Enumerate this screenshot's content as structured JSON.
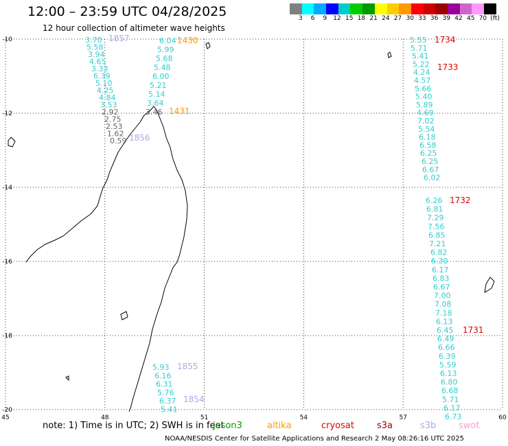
{
  "header": {
    "title": "12:00 – 23:59 UTC 04/28/2025",
    "subtitle": "12 hour collection of altimeter wave heights"
  },
  "colorbar": {
    "colors": [
      "#808080",
      "#00ffff",
      "#00aaff",
      "#0000ff",
      "#00cccc",
      "#00cc00",
      "#009900",
      "#ffff00",
      "#ffcc00",
      "#ff9900",
      "#ff0000",
      "#cc0000",
      "#990000",
      "#990099",
      "#cc66cc",
      "#ff99ff",
      "#000000"
    ],
    "ticks": [
      "3",
      "6",
      "9",
      "12",
      "15",
      "18",
      "21",
      "24",
      "27",
      "30",
      "33",
      "36",
      "39",
      "42",
      "45",
      "70",
      "(ft)"
    ]
  },
  "map": {
    "lon_range": [
      45,
      60
    ],
    "lat_range": [
      -20,
      -10
    ],
    "lat_ticks": [
      "-10",
      "-12",
      "-14",
      "-16",
      "-18",
      "-20"
    ],
    "lon_ticks": [
      "45",
      "48",
      "51",
      "54",
      "57",
      "60"
    ]
  },
  "tracks": [
    {
      "color": "#33cccc",
      "values": [
        {
          "t": "3.70",
          "c": "#33cccc"
        },
        {
          "t": "5.58",
          "c": "#33cccc"
        },
        {
          "t": "3.94",
          "c": "#33cccc"
        },
        {
          "t": "4.65",
          "c": "#33cccc"
        },
        {
          "t": "3.33",
          "c": "#33cccc"
        },
        {
          "t": "6.39",
          "c": "#33cccc"
        },
        {
          "t": "5.10",
          "c": "#33cccc"
        },
        {
          "t": "4.25",
          "c": "#33cccc"
        },
        {
          "t": "4.84",
          "c": "#33cccc"
        },
        {
          "t": "3.53",
          "c": "#33cccc"
        },
        {
          "t": "2.92",
          "c": "#666666"
        },
        {
          "t": "2.75",
          "c": "#666666"
        },
        {
          "t": "2.53",
          "c": "#666666"
        },
        {
          "t": "1.62",
          "c": "#666666"
        },
        {
          "t": "0.59",
          "c": "#666666"
        }
      ]
    },
    {
      "color": "#33cccc",
      "values": [
        {
          "t": "6.04",
          "c": "#33cccc"
        },
        {
          "t": "5.99",
          "c": "#33cccc"
        },
        {
          "t": "5.68",
          "c": "#33cccc"
        },
        {
          "t": "5.48",
          "c": "#33cccc"
        },
        {
          "t": "6.00",
          "c": "#33cccc"
        },
        {
          "t": "5.21",
          "c": "#33cccc"
        },
        {
          "t": "5.14",
          "c": "#33cccc"
        },
        {
          "t": "3.64",
          "c": "#33cccc"
        },
        {
          "t": "3.46",
          "c": "#666666"
        }
      ]
    },
    {
      "color": "#33cccc",
      "values": [
        {
          "t": "5.93",
          "c": "#33cccc"
        },
        {
          "t": "6.16",
          "c": "#33cccc"
        },
        {
          "t": "6.31",
          "c": "#33cccc"
        },
        {
          "t": "5.76",
          "c": "#33cccc"
        },
        {
          "t": "6.37",
          "c": "#33cccc"
        },
        {
          "t": "5.41",
          "c": "#33cccc"
        }
      ]
    },
    {
      "color": "#33cccc",
      "values": [
        {
          "t": "5.55",
          "c": "#33cccc"
        },
        {
          "t": "5.71",
          "c": "#33cccc"
        },
        {
          "t": "5.41",
          "c": "#33cccc"
        },
        {
          "t": "5.22",
          "c": "#33cccc"
        },
        {
          "t": "4.24",
          "c": "#33cccc"
        },
        {
          "t": "4.57",
          "c": "#33cccc"
        },
        {
          "t": "5.66",
          "c": "#33cccc"
        },
        {
          "t": "5.40",
          "c": "#33cccc"
        },
        {
          "t": "5.89",
          "c": "#33cccc"
        },
        {
          "t": "4.69",
          "c": "#33cccc"
        },
        {
          "t": "7.02",
          "c": "#33cccc"
        },
        {
          "t": "5.54",
          "c": "#33cccc"
        },
        {
          "t": "6.18",
          "c": "#33cccc"
        },
        {
          "t": "6.58",
          "c": "#33cccc"
        },
        {
          "t": "6.25",
          "c": "#33cccc"
        },
        {
          "t": "6.25",
          "c": "#33cccc"
        },
        {
          "t": "6.67",
          "c": "#33cccc"
        },
        {
          "t": "6.02",
          "c": "#33cccc"
        }
      ]
    },
    {
      "color": "#33cccc",
      "values": [
        {
          "t": "6.26",
          "c": "#33cccc"
        },
        {
          "t": "6.81",
          "c": "#33cccc"
        },
        {
          "t": "7.29",
          "c": "#33cccc"
        },
        {
          "t": "7.56",
          "c": "#33cccc"
        },
        {
          "t": "6.85",
          "c": "#33cccc"
        },
        {
          "t": "7.21",
          "c": "#33cccc"
        },
        {
          "t": "6.82",
          "c": "#33cccc"
        },
        {
          "t": "6.30",
          "c": "#33cccc"
        },
        {
          "t": "6.17",
          "c": "#33cccc"
        },
        {
          "t": "6.83",
          "c": "#33cccc"
        },
        {
          "t": "6.67",
          "c": "#33cccc"
        },
        {
          "t": "7.00",
          "c": "#33cccc"
        },
        {
          "t": "7.08",
          "c": "#33cccc"
        },
        {
          "t": "7.18",
          "c": "#33cccc"
        },
        {
          "t": "6.13",
          "c": "#33cccc"
        },
        {
          "t": "6.45",
          "c": "#33cccc"
        },
        {
          "t": "6.49",
          "c": "#33cccc"
        },
        {
          "t": "6.66",
          "c": "#33cccc"
        },
        {
          "t": "6.39",
          "c": "#33cccc"
        },
        {
          "t": "5.59",
          "c": "#33cccc"
        },
        {
          "t": "6.13",
          "c": "#33cccc"
        },
        {
          "t": "6.80",
          "c": "#33cccc"
        },
        {
          "t": "6.68",
          "c": "#33cccc"
        },
        {
          "t": "5.71",
          "c": "#33cccc"
        },
        {
          "t": "6.17",
          "c": "#33cccc"
        },
        {
          "t": "6.73",
          "c": "#33cccc"
        }
      ]
    }
  ],
  "time_labels": [
    {
      "t": "1857",
      "c": "#b3a6e6"
    },
    {
      "t": "1856",
      "c": "#b3a6e6"
    },
    {
      "t": "1430",
      "c": "#ff9900"
    },
    {
      "t": "1431",
      "c": "#ff9900"
    },
    {
      "t": "1855",
      "c": "#b3a6e6"
    },
    {
      "t": "1854",
      "c": "#b3a6e6"
    },
    {
      "t": "1734",
      "c": "#dd0000"
    },
    {
      "t": "1733",
      "c": "#dd0000"
    },
    {
      "t": "1732",
      "c": "#dd0000"
    },
    {
      "t": "1731",
      "c": "#dd0000"
    }
  ],
  "footer": {
    "note": "note:  1) Time is in UTC;  2) SWH is in feet",
    "credit": "NOAA/NESDIS Center for Satellite Applications and Research    2 May 08:26:16 UTC 2025",
    "satellites": [
      {
        "name": "jason3",
        "color": "#009900"
      },
      {
        "name": "altika",
        "color": "#ff9900"
      },
      {
        "name": "cryosat",
        "color": "#dd0000"
      },
      {
        "name": "s3a",
        "color": "#990000"
      },
      {
        "name": "s3b",
        "color": "#b3a6e6"
      },
      {
        "name": "swot",
        "color": "#ff99cc"
      }
    ]
  }
}
